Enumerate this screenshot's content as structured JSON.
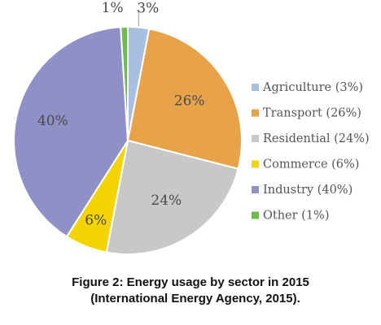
{
  "chart_data": {
    "type": "pie",
    "title": "",
    "categories": [
      "Agriculture",
      "Transport",
      "Residential",
      "Commerce",
      "Industry",
      "Other"
    ],
    "values": [
      3,
      26,
      24,
      6,
      40,
      1
    ],
    "value_labels": [
      "3%",
      "26%",
      "24%",
      "6%",
      "40%",
      "1%"
    ],
    "legend_entries": [
      "Agriculture (3%)",
      "Transport (26%)",
      "Residential (24%)",
      "Commerce (6%)",
      "Industry (40%)",
      "Other (1%)"
    ],
    "colors": [
      "#a9bfe2",
      "#e8a349",
      "#c8c8c8",
      "#f3d400",
      "#8f90c6",
      "#6dbd4c"
    ],
    "start_angle_deg": 0,
    "direction": "clockwise",
    "legend_placement": "right"
  },
  "caption": {
    "line1": "Figure 2: Energy usage by sector in 2015",
    "line2": "(International Energy Agency, 2015)."
  }
}
